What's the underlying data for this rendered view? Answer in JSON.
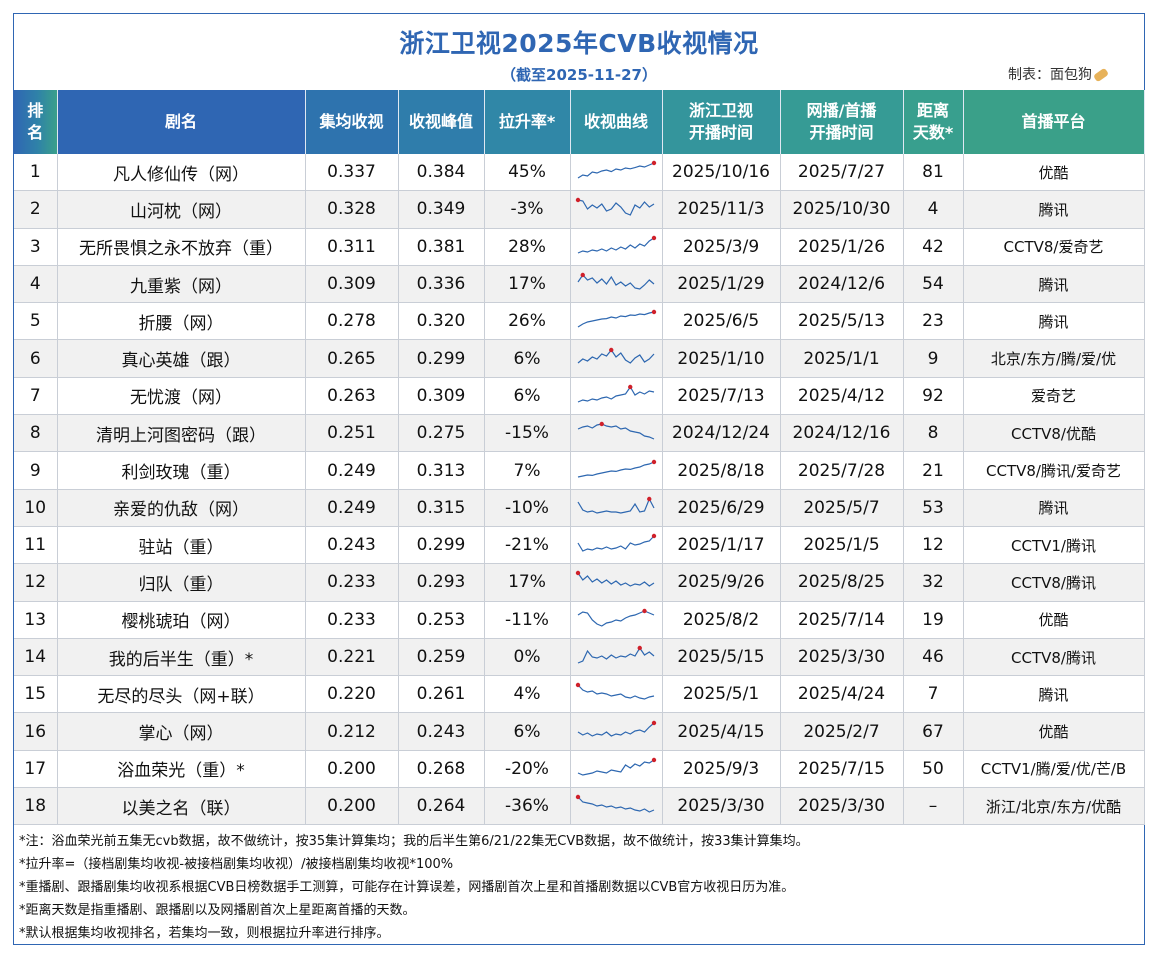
{
  "title": "浙江卫视2025年CVB收视情况",
  "subtitle": "（截至2025-11-27）",
  "maker": "制表：面包狗",
  "headers": [
    {
      "l1": "排",
      "l2": "名"
    },
    {
      "l1": "剧名",
      "l2": ""
    },
    {
      "l1": "集均收视",
      "l2": ""
    },
    {
      "l1": "收视峰值",
      "l2": ""
    },
    {
      "l1": "拉升率*",
      "l2": ""
    },
    {
      "l1": "收视曲线",
      "l2": ""
    },
    {
      "l1": "浙江卫视",
      "l2": "开播时间"
    },
    {
      "l1": "网播/首播",
      "l2": "开播时间"
    },
    {
      "l1": "距离",
      "l2": "天数*"
    },
    {
      "l1": "首播平台",
      "l2": ""
    }
  ],
  "rows": [
    {
      "rank": "1",
      "name": "凡人修仙传（网）",
      "avg": "0.337",
      "peak": "0.384",
      "lift": "45%",
      "zj": "2025/10/16",
      "web": "2025/7/27",
      "days": "81",
      "platform": "优酷",
      "spark": [
        0.2,
        0.35,
        0.3,
        0.5,
        0.45,
        0.55,
        0.6,
        0.52,
        0.65,
        0.6,
        0.7,
        0.66,
        0.72,
        0.8,
        0.75,
        0.85,
        0.95
      ]
    },
    {
      "rank": "2",
      "name": "山河枕（网）",
      "avg": "0.328",
      "peak": "0.349",
      "lift": "-3%",
      "zj": "2025/11/3",
      "web": "2025/10/30",
      "days": "4",
      "platform": "腾讯",
      "spark": [
        0.95,
        0.9,
        0.5,
        0.7,
        0.55,
        0.75,
        0.4,
        0.5,
        0.8,
        0.6,
        0.3,
        0.2,
        0.7,
        0.55,
        0.85,
        0.6,
        0.75
      ]
    },
    {
      "rank": "3",
      "name": "无所畏惧之永不放弃（重）",
      "avg": "0.311",
      "peak": "0.381",
      "lift": "28%",
      "zj": "2025/3/9",
      "web": "2025/1/26",
      "days": "42",
      "platform": "CCTV8/爱奇艺",
      "spark": [
        0.2,
        0.3,
        0.25,
        0.35,
        0.3,
        0.4,
        0.3,
        0.45,
        0.35,
        0.5,
        0.4,
        0.6,
        0.45,
        0.65,
        0.55,
        0.8,
        0.95
      ]
    },
    {
      "rank": "4",
      "name": "九重紫（网）",
      "avg": "0.309",
      "peak": "0.336",
      "lift": "17%",
      "zj": "2025/1/29",
      "web": "2024/12/6",
      "days": "54",
      "platform": "腾讯",
      "spark": [
        0.6,
        0.95,
        0.7,
        0.8,
        0.55,
        0.75,
        0.5,
        0.85,
        0.45,
        0.6,
        0.4,
        0.55,
        0.3,
        0.25,
        0.45,
        0.7,
        0.5
      ]
    },
    {
      "rank": "5",
      "name": "折腰（网）",
      "avg": "0.278",
      "peak": "0.320",
      "lift": "26%",
      "zj": "2025/6/5",
      "web": "2025/5/13",
      "days": "23",
      "platform": "腾讯",
      "spark": [
        0.2,
        0.35,
        0.45,
        0.5,
        0.55,
        0.6,
        0.62,
        0.7,
        0.65,
        0.75,
        0.72,
        0.8,
        0.78,
        0.85,
        0.82,
        0.9,
        0.95
      ]
    },
    {
      "rank": "6",
      "name": "真心英雄（跟）",
      "avg": "0.265",
      "peak": "0.299",
      "lift": "6%",
      "zj": "2025/1/10",
      "web": "2025/1/1",
      "days": "9",
      "platform": "北京/东方/腾/爱/优",
      "spark": [
        0.3,
        0.5,
        0.4,
        0.6,
        0.5,
        0.75,
        0.65,
        0.95,
        0.6,
        0.8,
        0.45,
        0.3,
        0.55,
        0.7,
        0.35,
        0.5,
        0.75
      ]
    },
    {
      "rank": "7",
      "name": "无忧渡（网）",
      "avg": "0.263",
      "peak": "0.309",
      "lift": "6%",
      "zj": "2025/7/13",
      "web": "2025/4/12",
      "days": "92",
      "platform": "爱奇艺",
      "spark": [
        0.2,
        0.3,
        0.25,
        0.35,
        0.3,
        0.4,
        0.45,
        0.35,
        0.5,
        0.55,
        0.6,
        0.95,
        0.55,
        0.7,
        0.6,
        0.75,
        0.7
      ]
    },
    {
      "rank": "8",
      "name": "清明上河图密码（跟）",
      "avg": "0.251",
      "peak": "0.275",
      "lift": "-15%",
      "zj": "2024/12/24",
      "web": "2024/12/16",
      "days": "8",
      "platform": "CCTV8/优酷",
      "spark": [
        0.7,
        0.8,
        0.85,
        0.75,
        0.9,
        0.95,
        0.85,
        0.8,
        0.85,
        0.7,
        0.75,
        0.6,
        0.55,
        0.5,
        0.35,
        0.3,
        0.2
      ]
    },
    {
      "rank": "9",
      "name": "利剑玫瑰（重）",
      "avg": "0.249",
      "peak": "0.313",
      "lift": "7%",
      "zj": "2025/8/18",
      "web": "2025/7/28",
      "days": "21",
      "platform": "CCTV8/腾讯/爱奇艺",
      "spark": [
        0.2,
        0.25,
        0.3,
        0.28,
        0.35,
        0.4,
        0.45,
        0.5,
        0.48,
        0.55,
        0.6,
        0.58,
        0.65,
        0.7,
        0.8,
        0.85,
        0.95
      ]
    },
    {
      "rank": "10",
      "name": "亲爱的仇敌（网）",
      "avg": "0.249",
      "peak": "0.315",
      "lift": "-10%",
      "zj": "2025/6/29",
      "web": "2025/5/7",
      "days": "53",
      "platform": "腾讯",
      "spark": [
        0.8,
        0.4,
        0.3,
        0.35,
        0.25,
        0.3,
        0.35,
        0.3,
        0.3,
        0.25,
        0.3,
        0.35,
        0.7,
        0.3,
        0.35,
        0.95,
        0.5
      ]
    },
    {
      "rank": "11",
      "name": "驻站（重）",
      "avg": "0.243",
      "peak": "0.299",
      "lift": "-21%",
      "zj": "2025/1/17",
      "web": "2025/1/5",
      "days": "12",
      "platform": "CCTV1/腾讯",
      "spark": [
        0.6,
        0.2,
        0.3,
        0.25,
        0.35,
        0.3,
        0.4,
        0.3,
        0.35,
        0.45,
        0.3,
        0.6,
        0.5,
        0.55,
        0.65,
        0.7,
        0.95
      ]
    },
    {
      "rank": "12",
      "name": "归队（重）",
      "avg": "0.233",
      "peak": "0.293",
      "lift": "17%",
      "zj": "2025/9/26",
      "web": "2025/8/25",
      "days": "32",
      "platform": "CCTV8/腾讯",
      "spark": [
        0.95,
        0.6,
        0.8,
        0.5,
        0.65,
        0.45,
        0.6,
        0.4,
        0.55,
        0.35,
        0.45,
        0.3,
        0.4,
        0.35,
        0.5,
        0.3,
        0.45
      ]
    },
    {
      "rank": "13",
      "name": "樱桃琥珀（网）",
      "avg": "0.233",
      "peak": "0.253",
      "lift": "-11%",
      "zj": "2025/8/2",
      "web": "2025/7/14",
      "days": "19",
      "platform": "优酷",
      "spark": [
        0.75,
        0.9,
        0.85,
        0.5,
        0.3,
        0.2,
        0.35,
        0.4,
        0.5,
        0.45,
        0.6,
        0.7,
        0.75,
        0.85,
        0.95,
        0.85,
        0.75
      ]
    },
    {
      "rank": "14",
      "name": "我的后半生（重）*",
      "avg": "0.221",
      "peak": "0.259",
      "lift": "0%",
      "zj": "2025/5/15",
      "web": "2025/3/30",
      "days": "46",
      "platform": "CCTV8/腾讯",
      "spark": [
        0.2,
        0.3,
        0.8,
        0.5,
        0.45,
        0.55,
        0.4,
        0.6,
        0.45,
        0.55,
        0.5,
        0.65,
        0.55,
        0.95,
        0.6,
        0.75,
        0.55
      ]
    },
    {
      "rank": "15",
      "name": "无尽的尽头（网+联）",
      "avg": "0.220",
      "peak": "0.261",
      "lift": "4%",
      "zj": "2025/5/1",
      "web": "2025/4/24",
      "days": "7",
      "platform": "腾讯",
      "spark": [
        0.95,
        0.7,
        0.6,
        0.65,
        0.5,
        0.55,
        0.5,
        0.4,
        0.45,
        0.5,
        0.35,
        0.3,
        0.4,
        0.3,
        0.25,
        0.35,
        0.4
      ]
    },
    {
      "rank": "16",
      "name": "掌心（网）",
      "avg": "0.212",
      "peak": "0.243",
      "lift": "6%",
      "zj": "2025/4/15",
      "web": "2025/2/7",
      "days": "67",
      "platform": "优酷",
      "spark": [
        0.5,
        0.35,
        0.45,
        0.3,
        0.4,
        0.35,
        0.5,
        0.3,
        0.4,
        0.35,
        0.5,
        0.4,
        0.55,
        0.6,
        0.5,
        0.75,
        0.95
      ]
    },
    {
      "rank": "17",
      "name": "浴血荣光（重）*",
      "avg": "0.200",
      "peak": "0.268",
      "lift": "-20%",
      "zj": "2025/9/3",
      "web": "2025/7/15",
      "days": "50",
      "platform": "CCTV1/腾/爱/优/芒/B",
      "spark": [
        0.3,
        0.2,
        0.25,
        0.3,
        0.4,
        0.35,
        0.3,
        0.45,
        0.4,
        0.35,
        0.7,
        0.55,
        0.75,
        0.65,
        0.85,
        0.8,
        0.95
      ]
    },
    {
      "rank": "18",
      "name": "以美之名（联）",
      "avg": "0.200",
      "peak": "0.264",
      "lift": "-36%",
      "zj": "2025/3/30",
      "web": "2025/3/30",
      "days": "–",
      "platform": "浙江/北京/东方/优酷",
      "spark": [
        0.95,
        0.7,
        0.65,
        0.6,
        0.5,
        0.55,
        0.45,
        0.5,
        0.4,
        0.45,
        0.35,
        0.4,
        0.3,
        0.25,
        0.35,
        0.2,
        0.3
      ]
    }
  ],
  "notes": [
    "*注：浴血荣光前五集无cvb数据，故不做统计，按35集计算集均；我的后半生第6/21/22集无CVB数据，故不做统计，按33集计算集均。",
    "*拉升率=（接档剧集均收视-被接档剧集均收视）/被接档剧集均收视*100%",
    "*重播剧、跟播剧集均收视系根据CVB日榜数据手工测算，可能存在计算误差，网播剧首次上星和首播剧数据以CVB官方收视日历为准。",
    "*距离天数是指重播剧、跟播剧以及网播剧首次上星距离首播的天数。",
    "*默认根据集均收视排名，若集均一致，则根据拉升率进行排序。"
  ],
  "colors": {
    "accent": "#2f66b3",
    "spark_line": "#2d67b0",
    "spark_dot": "#d0202a"
  },
  "icons": {
    "maker_icon": "bread-icon"
  }
}
